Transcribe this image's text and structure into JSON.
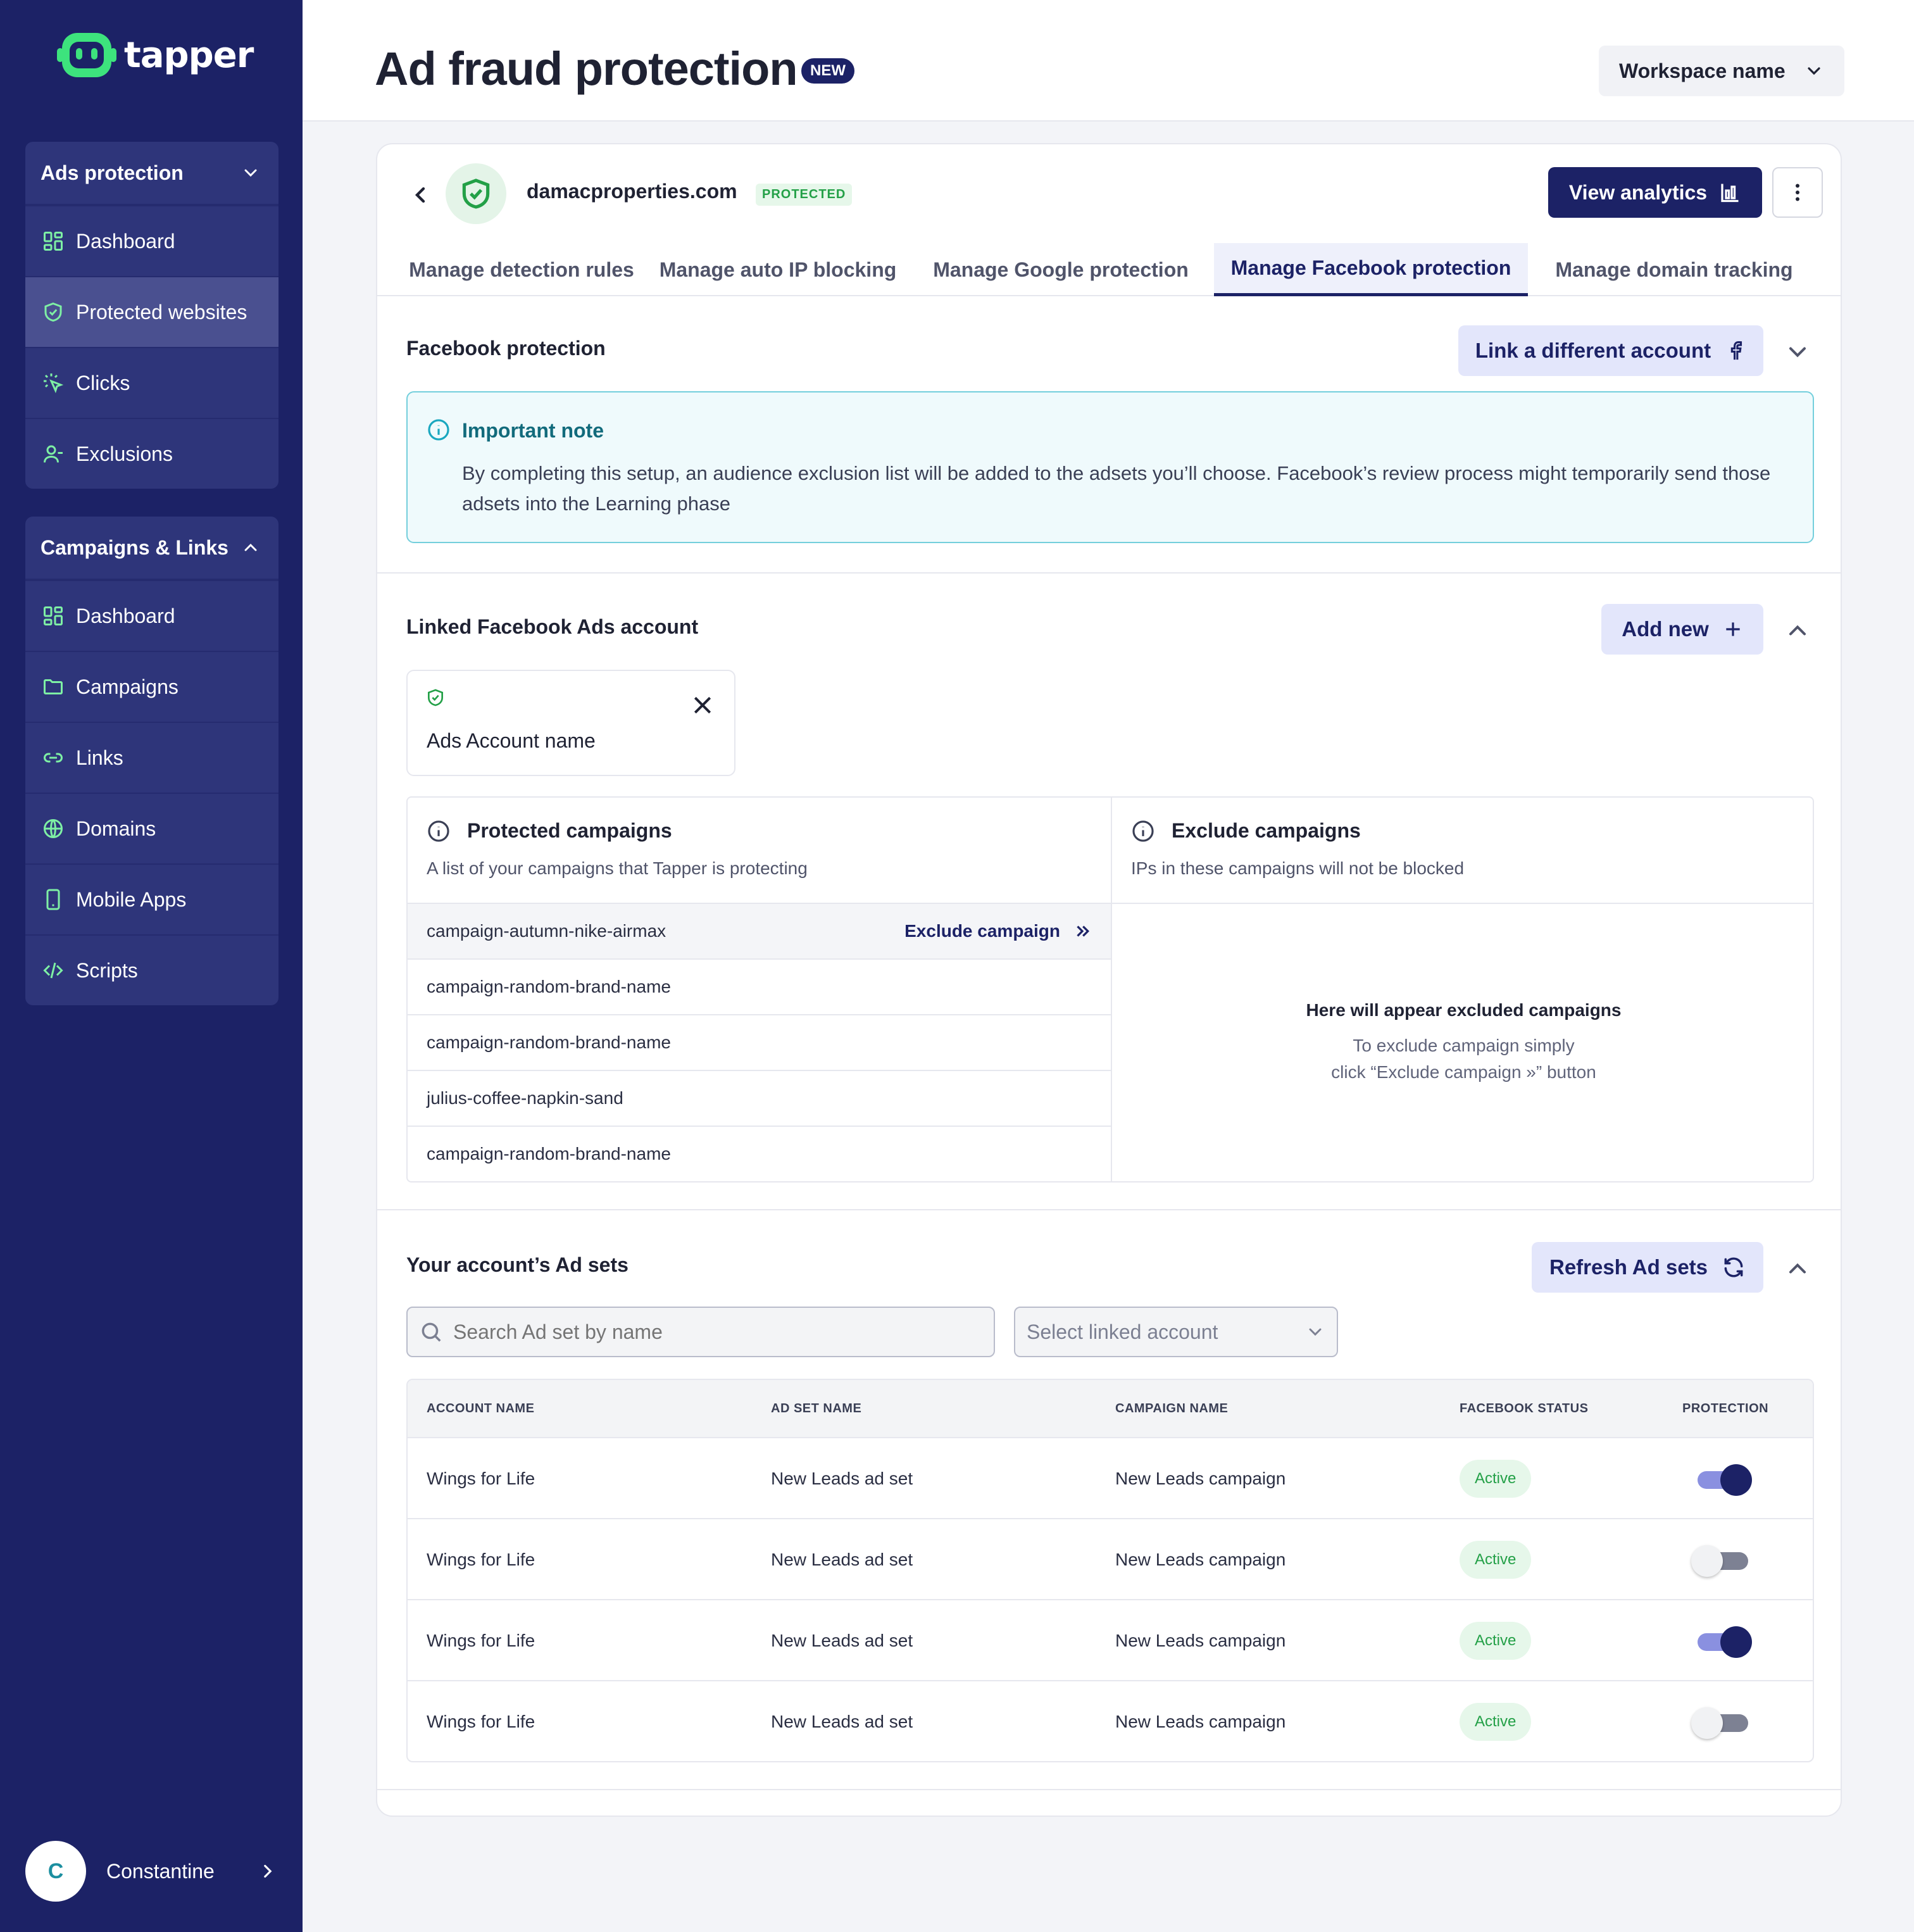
{
  "sidebar": {
    "logo_text": "tapper",
    "groups": [
      {
        "title": "Ads protection",
        "items": [
          {
            "label": "Dashboard",
            "icon": "dashboard-icon"
          },
          {
            "label": "Protected websites",
            "icon": "shield-icon",
            "active": true
          },
          {
            "label": "Clicks",
            "icon": "click-icon"
          },
          {
            "label": "Exclusions",
            "icon": "user-icon"
          }
        ]
      },
      {
        "title": "Campaigns & Links",
        "items": [
          {
            "label": "Dashboard",
            "icon": "dashboard-icon"
          },
          {
            "label": "Campaigns",
            "icon": "folder-icon"
          },
          {
            "label": "Links",
            "icon": "link-icon"
          },
          {
            "label": "Domains",
            "icon": "globe-icon"
          },
          {
            "label": "Mobile Apps",
            "icon": "phone-icon"
          },
          {
            "label": "Scripts",
            "icon": "code-icon"
          }
        ]
      }
    ],
    "user": {
      "initial": "C",
      "name": "Constantine"
    }
  },
  "header": {
    "title": "Ad fraud protection",
    "badge": "NEW",
    "workspace": "Workspace name"
  },
  "site": {
    "domain": "damacproperties.com",
    "status": "PROTECTED",
    "analytics_button": "View analytics"
  },
  "tabs": [
    {
      "label": "Manage detection rules"
    },
    {
      "label": "Manage auto IP blocking"
    },
    {
      "label": "Manage Google protection"
    },
    {
      "label": "Manage Facebook protection",
      "active": true
    },
    {
      "label": "Manage domain tracking"
    }
  ],
  "facebook": {
    "title": "Facebook protection",
    "link_button": "Link a different account",
    "note_title": "Important note",
    "note_text": "By completing this setup, an audience exclusion list will be added to the adsets you’ll choose. Facebook’s review process might temporarily send those adsets into the Learning phase"
  },
  "linked": {
    "title": "Linked Facebook Ads account",
    "add_button": "Add new",
    "account_name": "Ads Account name",
    "protected": {
      "title": "Protected campaigns",
      "subtitle": "A list of your campaigns that Tapper is protecting",
      "action": "Exclude campaign",
      "rows": [
        "campaign-autumn-nike-airmax",
        "campaign-random-brand-name",
        "campaign-random-brand-name",
        "julius-coffee-napkin-sand",
        "campaign-random-brand-name"
      ]
    },
    "excluded": {
      "title": "Exclude campaigns",
      "subtitle": "IPs in these campaigns will not be blocked",
      "empty_title": "Here will appear excluded campaigns",
      "empty_line1": "To exclude campaign simply",
      "empty_line2": "click “Exclude campaign  »” button"
    }
  },
  "adsets": {
    "title": "Your account’s Ad sets",
    "refresh_button": "Refresh Ad sets",
    "search_placeholder": "Search Ad set by name",
    "select_placeholder": "Select linked account",
    "columns": [
      "ACCOUNT NAME",
      "AD SET NAME",
      "CAMPAIGN NAME",
      "FACEBOOK STATUS",
      "PROTECTION"
    ],
    "rows": [
      {
        "account": "Wings for Life",
        "adset": "New Leads ad set",
        "campaign": "New Leads campaign",
        "status": "Active",
        "protection": true
      },
      {
        "account": "Wings for Life",
        "adset": "New Leads ad set",
        "campaign": "New Leads campaign",
        "status": "Active",
        "protection": false
      },
      {
        "account": "Wings for Life",
        "adset": "New Leads ad set",
        "campaign": "New Leads campaign",
        "status": "Active",
        "protection": true
      },
      {
        "account": "Wings for Life",
        "adset": "New Leads ad set",
        "campaign": "New Leads campaign",
        "status": "Active",
        "protection": false
      }
    ]
  },
  "colors": {
    "sidebar": "#1c2266",
    "accent": "#1c2266",
    "brand_green": "#3de37d",
    "active_green": "#23a047",
    "note_border": "#74cfdc"
  }
}
